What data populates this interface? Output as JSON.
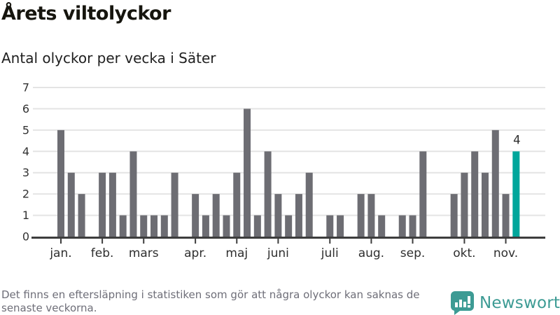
{
  "header": {
    "title": "Årets viltolyckor",
    "subtitle": "Antal olyckor per vecka i Säter"
  },
  "chart_data": {
    "type": "bar",
    "title": "Årets viltolyckor",
    "subtitle": "Antal olyckor per vecka i Säter",
    "x_unit": "vecka",
    "values": [
      5,
      3,
      2,
      0,
      3,
      3,
      1,
      4,
      1,
      1,
      1,
      3,
      0,
      2,
      1,
      2,
      1,
      3,
      6,
      1,
      4,
      2,
      1,
      2,
      3,
      0,
      1,
      1,
      0,
      2,
      2,
      1,
      0,
      1,
      1,
      4,
      0,
      0,
      2,
      3,
      4,
      3,
      5,
      2,
      4
    ],
    "month_ticks": [
      {
        "label": "jan.",
        "week": 1
      },
      {
        "label": "feb.",
        "week": 5
      },
      {
        "label": "mars",
        "week": 9
      },
      {
        "label": "apr.",
        "week": 14
      },
      {
        "label": "maj",
        "week": 18
      },
      {
        "label": "juni",
        "week": 22
      },
      {
        "label": "juli",
        "week": 27
      },
      {
        "label": "aug.",
        "week": 31
      },
      {
        "label": "sep.",
        "week": 35
      },
      {
        "label": "okt.",
        "week": 40
      },
      {
        "label": "nov.",
        "week": 44
      }
    ],
    "yticks": [
      0,
      1,
      2,
      3,
      4,
      5,
      6,
      7
    ],
    "ylim": [
      0,
      7
    ],
    "grid": "horizontal",
    "legend": "none",
    "bar_color": "#6d6d73",
    "highlight_color": "#00a69b",
    "highlight_last": true,
    "highlight_value_label": "4",
    "axis_color": "#3d3d3d",
    "gridline_color": "#e4e4e4",
    "tick_label_color": "#333333"
  },
  "footer": {
    "note_line1": "Det finns en eftersläpning i statistiken som gör att några olyckor kan saknas de",
    "note_line2": "senaste veckorna.",
    "brand": "Newsworthy",
    "brand_color": "#3d9b94"
  }
}
